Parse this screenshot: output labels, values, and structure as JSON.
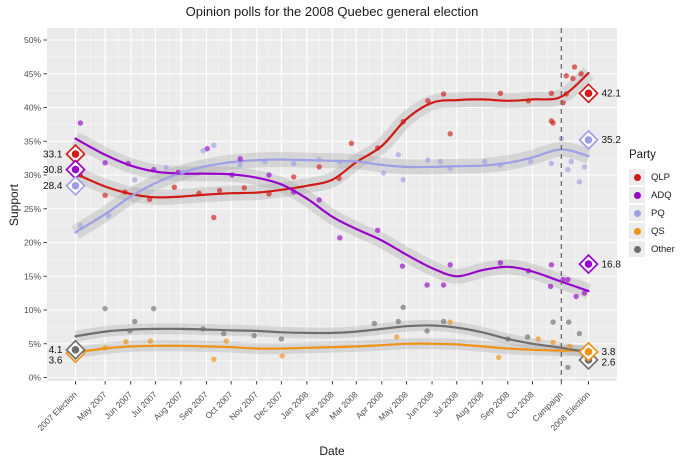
{
  "title": "Opinion polls for the 2008 Quebec general election",
  "axes": {
    "x_label": "Date",
    "y_label": "Support"
  },
  "legend": {
    "title": "Party",
    "items": [
      "QLP",
      "ADQ",
      "PQ",
      "QS",
      "Other"
    ]
  },
  "style": {
    "panel_bg": "#ebebeb",
    "grid_major": "#ffffff",
    "band_color": "#999999",
    "dashed_line": "#6b6b6b",
    "tick_text": "#4d4d4d",
    "annotation_text": "#111111"
  },
  "chart_data": {
    "type": "line",
    "title": "Opinion polls for the 2008 Quebec general election",
    "xlabel": "Date",
    "ylabel": "Support",
    "grid": true,
    "legend_position": "right",
    "ylim": [
      0,
      50
    ],
    "y_ticks": [
      0,
      5,
      10,
      15,
      20,
      25,
      30,
      35,
      40,
      45,
      50
    ],
    "y_tick_suffix": "%",
    "x_unit": "days_since_2007_election",
    "x_domain": [
      0,
      623
    ],
    "x_ticks": [
      {
        "label": "2007 Election",
        "day": 0
      },
      {
        "label": "May 2007",
        "day": 36
      },
      {
        "label": "Jun 2007",
        "day": 67
      },
      {
        "label": "Jul 2007",
        "day": 97
      },
      {
        "label": "Aug 2007",
        "day": 128
      },
      {
        "label": "Sep 2007",
        "day": 159
      },
      {
        "label": "Oct 2007",
        "day": 189
      },
      {
        "label": "Nov 2007",
        "day": 220
      },
      {
        "label": "Dec 2007",
        "day": 250
      },
      {
        "label": "Jan 2008",
        "day": 281
      },
      {
        "label": "Feb 2008",
        "day": 312
      },
      {
        "label": "Mar 2008",
        "day": 341
      },
      {
        "label": "Apr 2008",
        "day": 372
      },
      {
        "label": "May 2008",
        "day": 402
      },
      {
        "label": "Jun 2008",
        "day": 433
      },
      {
        "label": "Jul 2008",
        "day": 463
      },
      {
        "label": "Aug 2008",
        "day": 494
      },
      {
        "label": "Sep 2008",
        "day": 525
      },
      {
        "label": "Oct 2008",
        "day": 555
      },
      {
        "label": "Campaign",
        "day": 590
      },
      {
        "label": "2008 Election",
        "day": 623
      }
    ],
    "campaign_marker": {
      "label": "Campaign",
      "day": 590
    },
    "trend_days": [
      0,
      36,
      67,
      97,
      128,
      159,
      189,
      220,
      250,
      281,
      312,
      341,
      372,
      402,
      433,
      463,
      494,
      525,
      555,
      590,
      623
    ],
    "series": [
      {
        "name": "QLP",
        "color": "#d01c17",
        "trend": [
          30.2,
          28.3,
          27.2,
          26.7,
          26.8,
          27.1,
          27.3,
          27.4,
          27.8,
          28.4,
          29.3,
          31.9,
          34.3,
          38.3,
          40.7,
          41.1,
          41.2,
          41.0,
          41.2,
          41.6,
          45.1
        ],
        "polls": [
          [
            6,
            30.0
          ],
          [
            36,
            27.0
          ],
          [
            60,
            27.5
          ],
          [
            90,
            26.4
          ],
          [
            120,
            28.2
          ],
          [
            150,
            27.3
          ],
          [
            168,
            23.7
          ],
          [
            175,
            27.7
          ],
          [
            205,
            28.1
          ],
          [
            235,
            27.2
          ],
          [
            265,
            29.7
          ],
          [
            296,
            31.2
          ],
          [
            320,
            29.5
          ],
          [
            335,
            34.7
          ],
          [
            367,
            34.0
          ],
          [
            398,
            37.9
          ],
          [
            428,
            41.0
          ],
          [
            447,
            42.0
          ],
          [
            455,
            36.1
          ],
          [
            516,
            42.1
          ],
          [
            550,
            41.0
          ],
          [
            578,
            42.1
          ],
          [
            578,
            38.0
          ],
          [
            580,
            37.7
          ],
          [
            592,
            40.7
          ],
          [
            596,
            44.7
          ],
          [
            596,
            42.0
          ],
          [
            604,
            44.3
          ],
          [
            606,
            46.0
          ],
          [
            614,
            45.0
          ]
        ]
      },
      {
        "name": "ADQ",
        "color": "#9903cc",
        "trend": [
          35.4,
          33.0,
          31.4,
          30.5,
          30.2,
          30.2,
          30.1,
          29.6,
          28.6,
          26.5,
          23.8,
          22.0,
          20.3,
          18.2,
          16.2,
          15.0,
          15.9,
          16.4,
          15.7,
          14.2,
          12.8
        ],
        "polls": [
          [
            6,
            37.7
          ],
          [
            36,
            31.8
          ],
          [
            64,
            31.7
          ],
          [
            95,
            30.8
          ],
          [
            125,
            30.4
          ],
          [
            160,
            33.9
          ],
          [
            190,
            30.0
          ],
          [
            200,
            32.4
          ],
          [
            235,
            30.0
          ],
          [
            265,
            27.5
          ],
          [
            296,
            26.3
          ],
          [
            321,
            20.7
          ],
          [
            367,
            21.8
          ],
          [
            397,
            16.5
          ],
          [
            427,
            13.7
          ],
          [
            447,
            13.7
          ],
          [
            455,
            16.7
          ],
          [
            516,
            17.0
          ],
          [
            550,
            15.8
          ],
          [
            577,
            13.5
          ],
          [
            578,
            16.7
          ],
          [
            592,
            14.5
          ],
          [
            598,
            14.5
          ],
          [
            608,
            12.0
          ],
          [
            618,
            12.5
          ]
        ]
      },
      {
        "name": "PQ",
        "color": "#9f9fe6",
        "trend": [
          21.5,
          24.2,
          26.8,
          28.8,
          30.3,
          31.3,
          31.9,
          32.2,
          32.3,
          32.2,
          32.1,
          32.0,
          31.5,
          31.2,
          31.2,
          31.3,
          31.4,
          31.8,
          32.6,
          33.8,
          32.8
        ],
        "polls": [
          [
            6,
            22.5
          ],
          [
            40,
            24.0
          ],
          [
            72,
            29.3
          ],
          [
            110,
            31.1
          ],
          [
            130,
            30.4
          ],
          [
            155,
            33.6
          ],
          [
            168,
            34.4
          ],
          [
            200,
            31.5
          ],
          [
            230,
            32.0
          ],
          [
            265,
            31.7
          ],
          [
            296,
            32.3
          ],
          [
            321,
            31.9
          ],
          [
            374,
            30.3
          ],
          [
            392,
            33.0
          ],
          [
            398,
            29.3
          ],
          [
            428,
            32.2
          ],
          [
            443,
            32.0
          ],
          [
            455,
            31.0
          ],
          [
            497,
            32.0
          ],
          [
            516,
            31.5
          ],
          [
            553,
            32.0
          ],
          [
            578,
            31.7
          ],
          [
            590,
            35.4
          ],
          [
            598,
            30.8
          ],
          [
            602,
            32.0
          ],
          [
            612,
            29.0
          ],
          [
            618,
            31.2
          ]
        ]
      },
      {
        "name": "QS",
        "color": "#ef9215",
        "trend": [
          3.7,
          4.3,
          4.6,
          4.7,
          4.7,
          4.6,
          4.5,
          4.3,
          4.3,
          4.4,
          4.5,
          4.6,
          4.8,
          5.0,
          5.0,
          4.9,
          4.6,
          4.3,
          4.1,
          4.0,
          4.0
        ],
        "polls": [
          [
            36,
            4.4
          ],
          [
            61,
            5.3
          ],
          [
            91,
            5.4
          ],
          [
            168,
            2.7
          ],
          [
            183,
            5.4
          ],
          [
            251,
            3.2
          ],
          [
            390,
            6.0
          ],
          [
            455,
            8.2
          ],
          [
            514,
            3.0
          ],
          [
            562,
            5.7
          ],
          [
            580,
            5.2
          ],
          [
            600,
            4.6
          ]
        ]
      },
      {
        "name": "Other",
        "color": "#6e6e6e",
        "trend": [
          6.1,
          6.8,
          7.1,
          7.2,
          7.2,
          7.1,
          7.0,
          6.9,
          6.7,
          6.6,
          6.6,
          6.8,
          7.2,
          7.6,
          7.7,
          7.4,
          6.7,
          5.7,
          5.0,
          4.4,
          3.7
        ],
        "polls": [
          [
            36,
            10.2
          ],
          [
            66,
            6.9
          ],
          [
            72,
            8.3
          ],
          [
            95,
            10.2
          ],
          [
            155,
            7.2
          ],
          [
            180,
            6.5
          ],
          [
            217,
            6.2
          ],
          [
            250,
            5.7
          ],
          [
            363,
            8.0
          ],
          [
            392,
            8.3
          ],
          [
            398,
            10.4
          ],
          [
            427,
            6.9
          ],
          [
            447,
            8.3
          ],
          [
            525,
            5.7
          ],
          [
            549,
            6.0
          ],
          [
            580,
            8.2
          ],
          [
            598,
            1.5
          ],
          [
            599,
            8.2
          ],
          [
            612,
            6.5
          ]
        ]
      }
    ],
    "election_results": [
      {
        "election": "2007 Election",
        "day": 0,
        "label_side": "left",
        "results": [
          {
            "party": "QLP",
            "value": 33.1
          },
          {
            "party": "ADQ",
            "value": 30.8
          },
          {
            "party": "PQ",
            "value": 28.4
          },
          {
            "party": "QS",
            "value": 3.6
          },
          {
            "party": "Other",
            "value": 4.1
          }
        ]
      },
      {
        "election": "2008 Election",
        "day": 623,
        "label_side": "right",
        "results": [
          {
            "party": "QLP",
            "value": 42.1
          },
          {
            "party": "PQ",
            "value": 35.2
          },
          {
            "party": "ADQ",
            "value": 16.8
          },
          {
            "party": "Other",
            "value": 2.6
          },
          {
            "party": "QS",
            "value": 3.8
          }
        ]
      }
    ]
  }
}
